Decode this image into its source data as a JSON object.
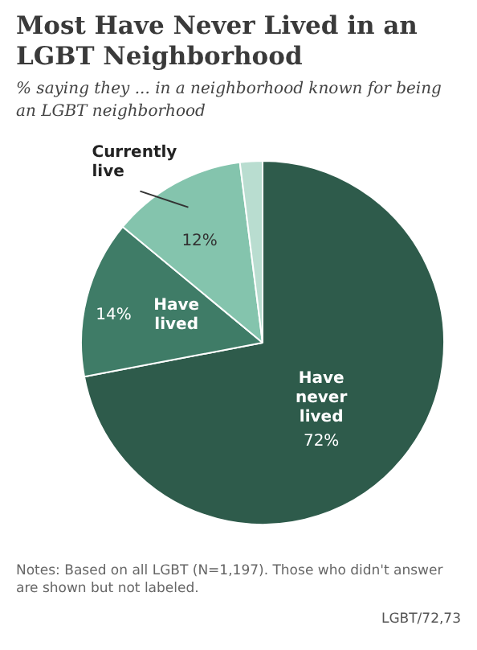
{
  "chart_data": {
    "type": "pie",
    "title": "Most Have Never Lived in an LGBT Neighborhood",
    "subtitle": "% saying they ... in a neighborhood known for being an LGBT neighborhood",
    "categories": [
      "Have never lived",
      "Have lived",
      "Currently live",
      null
    ],
    "values": [
      72,
      14,
      12,
      2
    ],
    "colors": [
      "#2e5b4b",
      "#3f7c67",
      "#84c4ad",
      "#b9ddd0"
    ],
    "value_labels": [
      "72%",
      "14%",
      "12%",
      null
    ],
    "legend": false,
    "annotations": [
      "Notes: Based on all LGBT (N=1,197). Those who didn't answer are shown but not labeled.",
      "LGBT/72,73"
    ]
  }
}
